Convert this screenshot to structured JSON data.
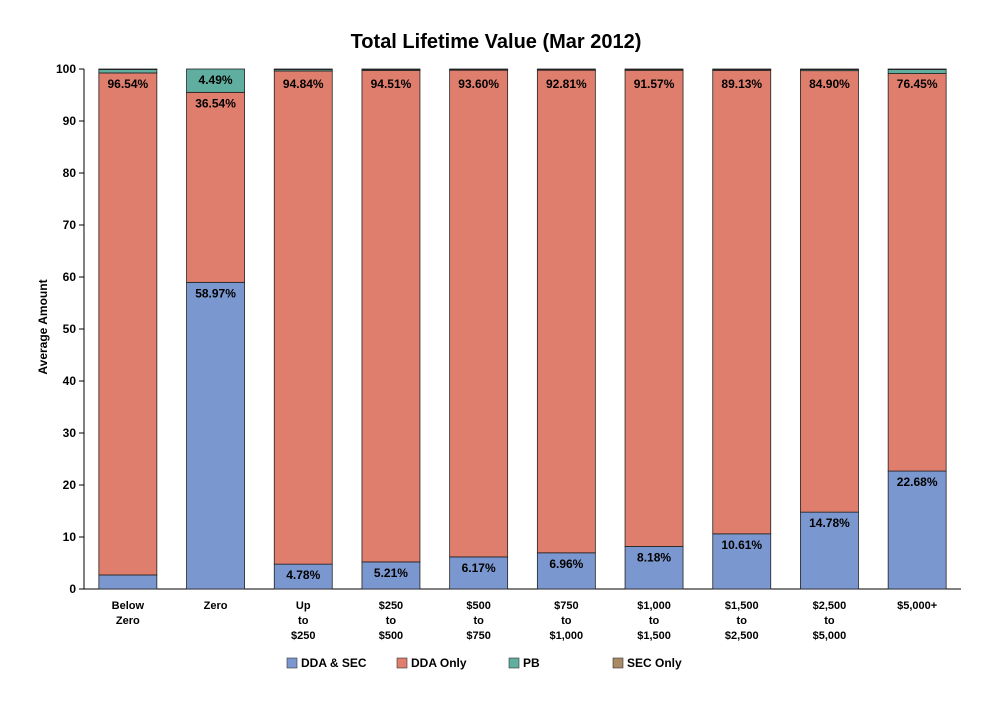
{
  "chart_data": {
    "type": "bar",
    "stacked": true,
    "title": "Total Lifetime Value (Mar 2012)",
    "xlabel": "",
    "ylabel": "Average Amount",
    "ylim": [
      0,
      100
    ],
    "yticks": [
      0,
      10,
      20,
      30,
      40,
      50,
      60,
      70,
      80,
      90,
      100
    ],
    "grid": false,
    "legend_position": "bottom",
    "categories": [
      [
        "Below",
        "Zero"
      ],
      [
        "Zero"
      ],
      [
        "Up",
        "to",
        "$250"
      ],
      [
        "$250",
        "to",
        "$500"
      ],
      [
        "$500",
        "to",
        "$750"
      ],
      [
        "$750",
        "to",
        "$1,000"
      ],
      [
        "$1,000",
        "to",
        "$1,500"
      ],
      [
        "$1,500",
        "to",
        "$2,500"
      ],
      [
        "$2,500",
        "to",
        "$5,000"
      ],
      [
        "$5,000+"
      ]
    ],
    "series": [
      {
        "name": "DDA & SEC",
        "color": "#7b97cf",
        "values": [
          2.7,
          58.97,
          4.78,
          5.21,
          6.17,
          6.96,
          8.18,
          10.61,
          14.78,
          22.68
        ],
        "labels": [
          "",
          "58.97%",
          "4.78%",
          "5.21%",
          "6.17%",
          "6.96%",
          "8.18%",
          "10.61%",
          "14.78%",
          "22.68%"
        ]
      },
      {
        "name": "DDA Only",
        "color": "#e07e6e",
        "values": [
          96.54,
          36.54,
          94.84,
          94.51,
          93.6,
          92.81,
          91.57,
          89.13,
          84.9,
          76.45
        ],
        "labels": [
          "96.54%",
          "36.54%",
          "94.84%",
          "94.51%",
          "93.60%",
          "92.81%",
          "91.57%",
          "89.13%",
          "84.90%",
          "76.45%"
        ]
      },
      {
        "name": "PB",
        "color": "#5fae9f",
        "values": [
          0.66,
          4.49,
          0.28,
          0.18,
          0.13,
          0.13,
          0.15,
          0.16,
          0.22,
          0.77
        ],
        "labels": [
          "",
          "4.49%",
          "",
          "",
          "",
          "",
          "",
          "",
          "",
          ""
        ]
      },
      {
        "name": "SEC Only",
        "color": "#a88a64",
        "values": [
          0.1,
          0.0,
          0.1,
          0.1,
          0.1,
          0.1,
          0.1,
          0.1,
          0.1,
          0.1
        ],
        "labels": [
          "",
          "",
          "",
          "",
          "",
          "",
          "",
          "",
          "",
          ""
        ]
      }
    ]
  }
}
